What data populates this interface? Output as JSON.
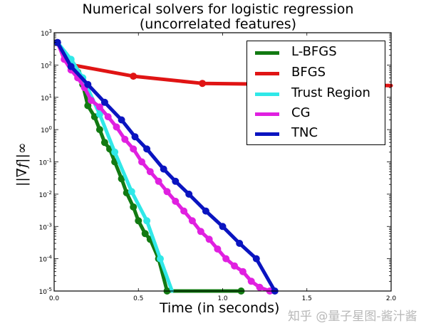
{
  "title_line1": "Numerical solvers for logistic regression",
  "title_line2": "(uncorrelated features)",
  "xlabel": "Time (in seconds)",
  "ylabel": "||∇f||∞",
  "watermark": "知乎 @量子星图-酱汁酱",
  "legend": [
    {
      "label": "L-BFGS",
      "color": "#127a12"
    },
    {
      "label": "BFGS",
      "color": "#e01414"
    },
    {
      "label": "Trust Region",
      "color": "#30e8e8"
    },
    {
      "label": "CG",
      "color": "#e020e0"
    },
    {
      "label": "TNC",
      "color": "#0a14c0"
    }
  ],
  "x_ticks": [
    "0.0",
    "0.5",
    "1.0",
    "1.5",
    "2.0"
  ],
  "y_ticks": [
    "10^3",
    "10^2",
    "10^1",
    "10^0",
    "10^-1",
    "10^-2",
    "10^-3",
    "10^-4",
    "10^-5"
  ],
  "chart_data": {
    "type": "line",
    "title": "Numerical solvers for logistic regression (uncorrelated features)",
    "xlabel": "Time (in seconds)",
    "ylabel": "||∇f||∞",
    "xlim": [
      0.0,
      2.0
    ],
    "ylim": [
      1e-05,
      1000.0
    ],
    "yscale": "log",
    "grid": false,
    "legend_position": "upper right",
    "series": [
      {
        "name": "L-BFGS",
        "color": "#127a12",
        "x": [
          0.02,
          0.1,
          0.14,
          0.17,
          0.2,
          0.24,
          0.27,
          0.3,
          0.33,
          0.36,
          0.4,
          0.43,
          0.47,
          0.5,
          0.54,
          0.57,
          0.62,
          0.67,
          1.11
        ],
        "y": [
          500,
          120,
          60,
          25,
          5.5,
          2.5,
          1.0,
          0.4,
          0.25,
          0.1,
          0.03,
          0.011,
          0.004,
          0.0015,
          0.0006,
          0.0004,
          0.0001,
          1e-05,
          1e-05
        ]
      },
      {
        "name": "BFGS",
        "color": "#e01414",
        "x": [
          0.02,
          0.11,
          0.47,
          0.88,
          2.0
        ],
        "y": [
          500,
          100,
          45,
          27,
          23
        ]
      },
      {
        "name": "Trust Region",
        "color": "#30e8e8",
        "x": [
          0.02,
          0.1,
          0.17,
          0.27,
          0.36,
          0.46,
          0.55,
          0.63,
          0.7
        ],
        "y": [
          500,
          150,
          40,
          3.0,
          0.2,
          0.012,
          0.0015,
          0.0001,
          1e-05
        ]
      },
      {
        "name": "CG",
        "color": "#e020e0",
        "x": [
          0.02,
          0.06,
          0.1,
          0.14,
          0.18,
          0.22,
          0.27,
          0.32,
          0.37,
          0.42,
          0.47,
          0.52,
          0.57,
          0.62,
          0.67,
          0.72,
          0.77,
          0.82,
          0.87,
          0.92,
          0.97,
          1.02,
          1.07,
          1.12,
          1.17,
          1.22,
          1.28
        ],
        "y": [
          500,
          150,
          70,
          40,
          20,
          8,
          5,
          2.5,
          1.2,
          0.5,
          0.25,
          0.1,
          0.05,
          0.025,
          0.012,
          0.006,
          0.003,
          0.0015,
          0.0007,
          0.0004,
          0.0002,
          0.0001,
          6e-05,
          4e-05,
          2e-05,
          1.3e-05,
          1e-05
        ]
      },
      {
        "name": "TNC",
        "color": "#0a14c0",
        "x": [
          0.02,
          0.1,
          0.2,
          0.3,
          0.4,
          0.48,
          0.55,
          0.65,
          0.72,
          0.8,
          0.9,
          1.0,
          1.1,
          1.2,
          1.31
        ],
        "y": [
          500,
          90,
          25,
          7,
          2,
          0.6,
          0.25,
          0.06,
          0.025,
          0.01,
          0.003,
          0.001,
          0.0003,
          0.0001,
          1e-05
        ]
      }
    ]
  }
}
